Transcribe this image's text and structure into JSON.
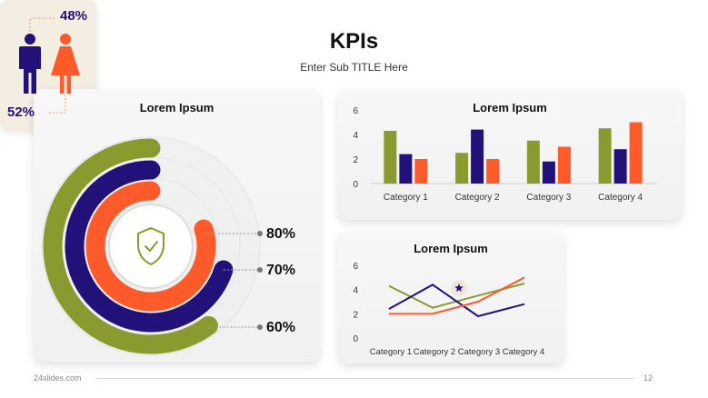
{
  "header": {
    "title": "KPIs",
    "subtitle": "Enter Sub TITLE Here"
  },
  "colors": {
    "olive": "#8a9a2e",
    "navy": "#23117a",
    "orange": "#ff5a2a",
    "track": "#e6e6e6"
  },
  "radial_card": {
    "title": "Lorem Ipsum",
    "icon": "shield-check-icon"
  },
  "gender_card": {
    "top_value": "48%",
    "bottom_value": "52%",
    "male_icon": "male-icon",
    "female_icon": "female-icon"
  },
  "footer": {
    "brand": "24slides.com",
    "page": "12"
  },
  "chart_data": [
    {
      "type": "pie",
      "subtype": "radial-progress",
      "title": "Lorem Ipsum",
      "series": [
        {
          "label": "80%",
          "value": 80,
          "color": "#ff5a2a"
        },
        {
          "label": "70%",
          "value": 70,
          "color": "#23117a"
        },
        {
          "label": "60%",
          "value": 60,
          "color": "#8a9a2e"
        }
      ]
    },
    {
      "type": "bar",
      "title": "Lorem Ipsum",
      "categories": [
        "Category 1",
        "Category 2",
        "Category 3",
        "Category 4"
      ],
      "series": [
        {
          "values": [
            4.3,
            2.5,
            3.5,
            4.5
          ],
          "color": "#8a9a2e"
        },
        {
          "values": [
            2.4,
            4.4,
            1.8,
            2.8
          ],
          "color": "#23117a"
        },
        {
          "values": [
            2.0,
            2.0,
            3.0,
            5.0
          ],
          "color": "#ff5a2a"
        }
      ],
      "yticks": [
        "0",
        "2",
        "4",
        "6"
      ],
      "ylim": [
        0,
        6
      ],
      "grid": false
    },
    {
      "type": "line",
      "title": "Lorem Ipsum",
      "categories": [
        "Category 1",
        "Category 2",
        "Category 3",
        "Category 4"
      ],
      "series": [
        {
          "values": [
            4.3,
            2.5,
            3.5,
            4.5
          ],
          "color": "#8a9a2e"
        },
        {
          "values": [
            2.4,
            4.4,
            1.8,
            2.8
          ],
          "color": "#23117a"
        },
        {
          "values": [
            2.0,
            2.0,
            3.0,
            5.0
          ],
          "color": "#ff5a2a"
        }
      ],
      "yticks": [
        "0",
        "2",
        "4",
        "6"
      ],
      "ylim": [
        0,
        6
      ],
      "marker": "star",
      "grid": false
    }
  ]
}
